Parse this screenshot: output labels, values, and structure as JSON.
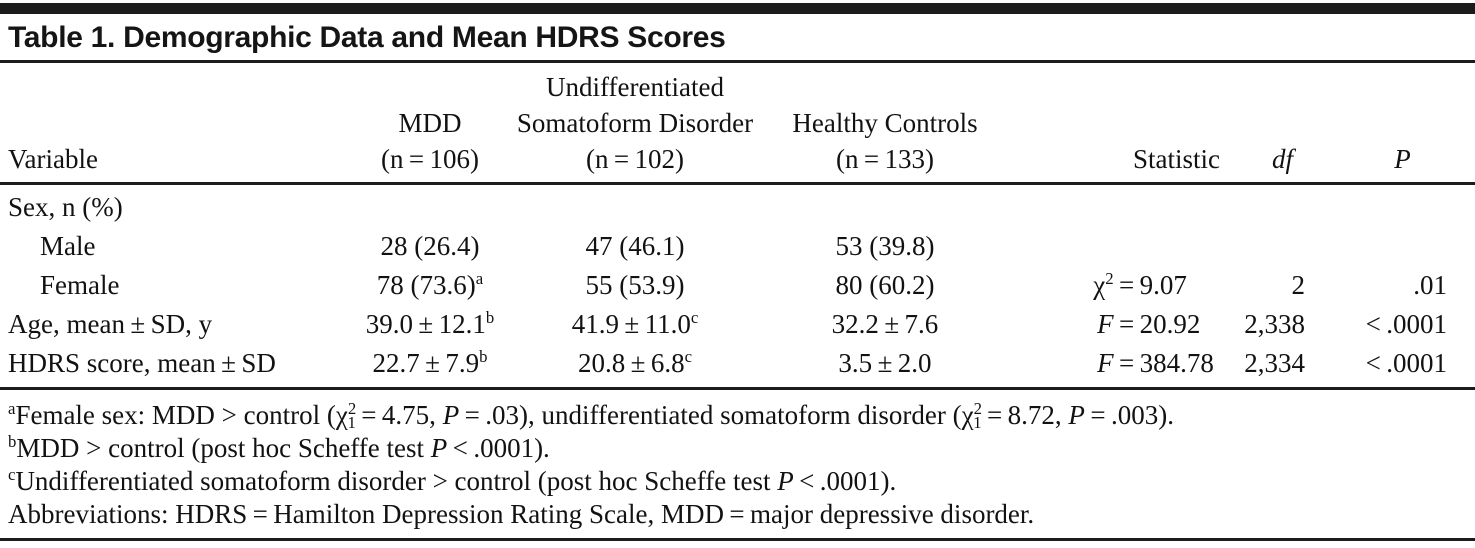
{
  "colors": {
    "ink": "#1c1c1c",
    "background": "#ffffff"
  },
  "title": "Table 1. Demographic Data and Mean HDRS Scores",
  "table": {
    "header": {
      "variable": "Variable",
      "groups": [
        {
          "lines": [
            "MDD"
          ],
          "n": "(n = 106)"
        },
        {
          "lines": [
            "Undifferentiated",
            "Somatoform Disorder"
          ],
          "n": "(n = 102)"
        },
        {
          "lines": [
            "Healthy Controls"
          ],
          "n": "(n = 133)"
        }
      ],
      "statistic": "Statistic",
      "df": "df",
      "p": "P"
    },
    "rows": [
      {
        "label": "Sex, n (%)",
        "indent": false,
        "values": [
          null,
          null,
          null
        ],
        "stat": null,
        "df": "",
        "p": ""
      },
      {
        "label": "Male",
        "indent": true,
        "values": [
          {
            "v": "28 (26.4)"
          },
          {
            "v": "47 (46.1)"
          },
          {
            "v": "53 (39.8)"
          }
        ],
        "stat": null,
        "df": "",
        "p": ""
      },
      {
        "label": "Female",
        "indent": true,
        "values": [
          {
            "v": "78 (73.6)",
            "note": "a"
          },
          {
            "v": "55 (53.9)"
          },
          {
            "v": "80 (60.2)"
          }
        ],
        "stat": {
          "symbol": "χ",
          "sup": "2",
          "italic": false,
          "value": "9.07"
        },
        "df": "2",
        "p": ".01"
      },
      {
        "label": "Age, mean ± SD, y",
        "indent": false,
        "values": [
          {
            "v": "39.0 ± 12.1",
            "note": "b"
          },
          {
            "v": "41.9 ± 11.0",
            "note": "c"
          },
          {
            "v": "32.2 ± 7.6"
          }
        ],
        "stat": {
          "symbol": "F",
          "italic": true,
          "value": "20.92"
        },
        "df": "2,338",
        "p": "< .0001"
      },
      {
        "label": "HDRS score, mean ± SD",
        "indent": false,
        "values": [
          {
            "v": "22.7 ± 7.9",
            "note": "b"
          },
          {
            "v": "20.8 ± 6.8",
            "note": "c"
          },
          {
            "v": "3.5 ± 2.0"
          }
        ],
        "stat": {
          "symbol": "F",
          "italic": true,
          "value": "384.78"
        },
        "df": "2,334",
        "p": "< .0001"
      }
    ]
  },
  "footnotes": [
    {
      "marker": "a",
      "segments": [
        {
          "t": "Female sex: MDD > control ("
        },
        {
          "t": "χ"
        },
        {
          "t": "2",
          "s": "sup"
        },
        {
          "t": "1",
          "s": "sub"
        },
        {
          "t": " = 4.75, "
        },
        {
          "t": "P",
          "s": "i"
        },
        {
          "t": " = .03), undifferentiated somatoform disorder ("
        },
        {
          "t": "χ"
        },
        {
          "t": "2",
          "s": "sup"
        },
        {
          "t": "1",
          "s": "sub"
        },
        {
          "t": " = 8.72, "
        },
        {
          "t": "P",
          "s": "i"
        },
        {
          "t": " = .003)."
        }
      ]
    },
    {
      "marker": "b",
      "segments": [
        {
          "t": "MDD > control (post hoc Scheffe test "
        },
        {
          "t": "P",
          "s": "i"
        },
        {
          "t": " < .0001)."
        }
      ]
    },
    {
      "marker": "c",
      "segments": [
        {
          "t": "Undifferentiated somatoform disorder > control (post hoc Scheffe test "
        },
        {
          "t": "P",
          "s": "i"
        },
        {
          "t": " < .0001)."
        }
      ]
    },
    {
      "marker": "",
      "segments": [
        {
          "t": "Abbreviations: HDRS = Hamilton Depression Rating Scale, MDD = major depressive disorder."
        }
      ]
    }
  ]
}
